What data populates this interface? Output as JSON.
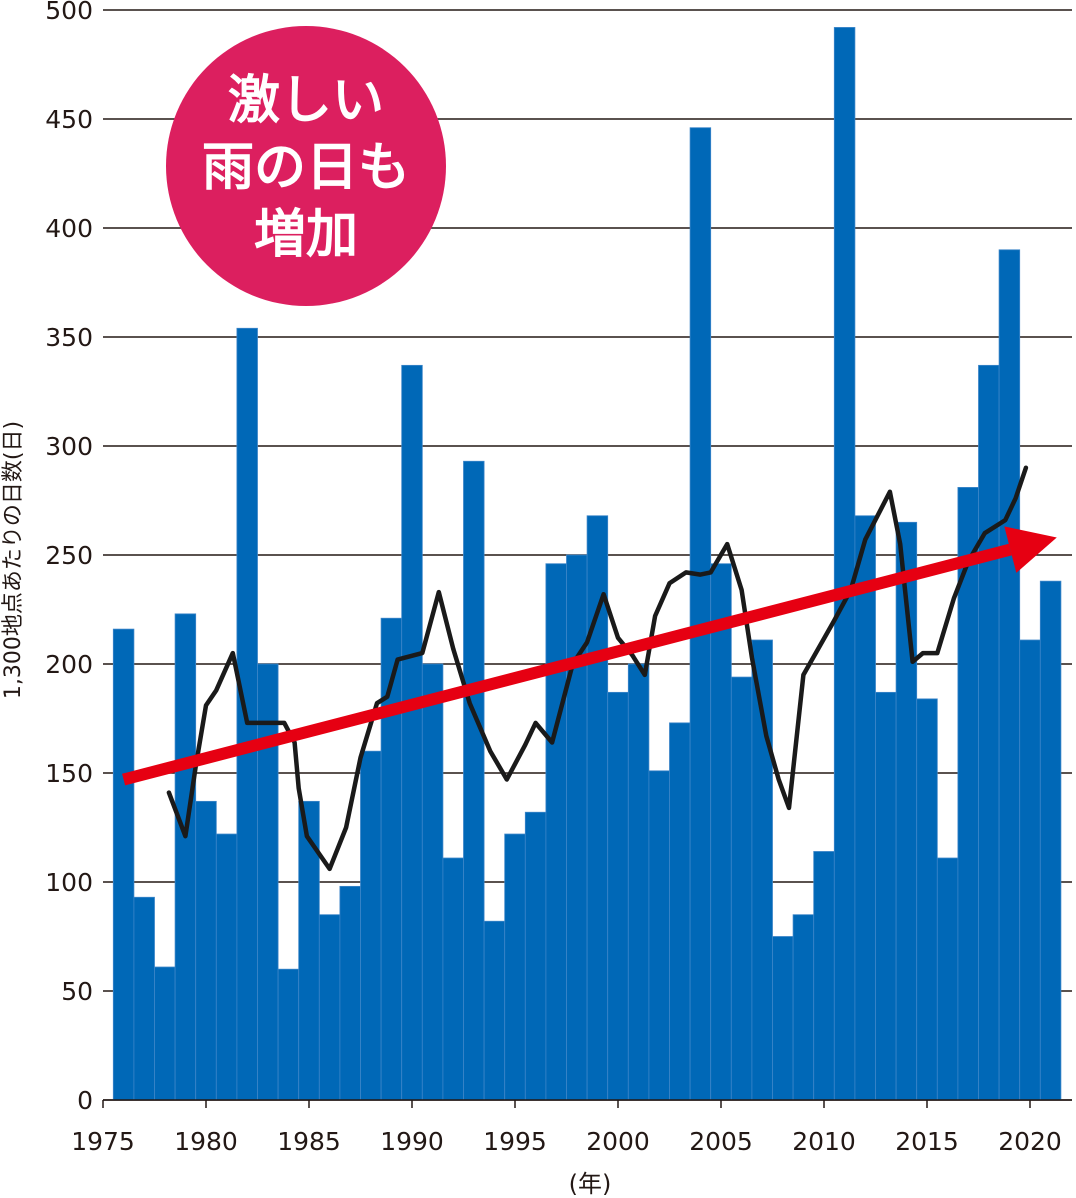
{
  "chart_data": {
    "type": "bar",
    "xlabel": "(年)",
    "ylabel": "1,300地点あたりの日数(日)",
    "ylim": [
      0,
      500
    ],
    "yticks": [
      0,
      50,
      100,
      150,
      200,
      250,
      300,
      350,
      400,
      450,
      500
    ],
    "xticks": [
      1975,
      1980,
      1985,
      1990,
      1995,
      2000,
      2005,
      2010,
      2015,
      2020
    ],
    "grid": true,
    "x": [
      1976,
      1977,
      1978,
      1979,
      1980,
      1981,
      1982,
      1983,
      1984,
      1985,
      1986,
      1987,
      1988,
      1989,
      1990,
      1991,
      1992,
      1993,
      1994,
      1995,
      1996,
      1997,
      1998,
      1999,
      2000,
      2001,
      2002,
      2003,
      2004,
      2005,
      2006,
      2007,
      2008,
      2009,
      2010,
      2011,
      2012,
      2013,
      2014,
      2015,
      2016,
      2017,
      2018,
      2019,
      2020,
      2021
    ],
    "series": [
      {
        "type": "bar",
        "color": "#0068b7",
        "values": [
          216,
          93,
          61,
          223,
          137,
          122,
          354,
          200,
          60,
          137,
          85,
          98,
          160,
          221,
          337,
          200,
          111,
          293,
          82,
          122,
          132,
          246,
          250,
          268,
          187,
          200,
          151,
          173,
          446,
          246,
          194,
          211,
          75,
          85,
          114,
          492,
          268,
          187,
          265,
          184,
          111,
          281,
          337,
          390,
          211,
          238
        ]
      },
      {
        "type": "line",
        "color": "#1a1a1a",
        "x": [
          1978.2,
          1979,
          1979.5,
          1980,
          1980.5,
          1981.3,
          1982,
          1983,
          1983.8,
          1984.3,
          1984.5,
          1984.9,
          1986,
          1986.8,
          1987.5,
          1988.3,
          1988.8,
          1989.3,
          1990.5,
          1991.3,
          1992,
          1992.8,
          1993.8,
          1994.6,
          1995.5,
          1996,
          1996.8,
          1997.8,
          1998.5,
          1999.3,
          2000,
          2000.7,
          2001.3,
          2001.8,
          2002.5,
          2003.3,
          2004,
          2004.5,
          2005.3,
          2006,
          2006.5,
          2007.2,
          2007.8,
          2008.3,
          2009,
          2010.5,
          2011.3,
          2012,
          2013.2,
          2013.7,
          2014.3,
          2014.8,
          2015.5,
          2016.3,
          2017,
          2017.8,
          2018.8,
          2019.3,
          2019.8
        ],
        "values": [
          141,
          121,
          153,
          181,
          188,
          205,
          173,
          173,
          173,
          164,
          143,
          121,
          106,
          125,
          157,
          182,
          185,
          202,
          205,
          233,
          207,
          182,
          160,
          147,
          163,
          173,
          164,
          200,
          210,
          232,
          212,
          204,
          195,
          222,
          237,
          242,
          241,
          242,
          255,
          234,
          203,
          167,
          147,
          134,
          195,
          220,
          234,
          257,
          279,
          255,
          201,
          205,
          205,
          230,
          247,
          260,
          266,
          276,
          290
        ]
      }
    ],
    "annotations": [
      {
        "type": "arrow",
        "color": "#e60012",
        "from": [
          1976.0,
          147
        ],
        "to": [
          2021.3,
          258
        ]
      },
      {
        "type": "badge",
        "color": "#dc1f5f",
        "text_lines": [
          "激しい",
          "雨の日も",
          "増加"
        ]
      }
    ]
  }
}
